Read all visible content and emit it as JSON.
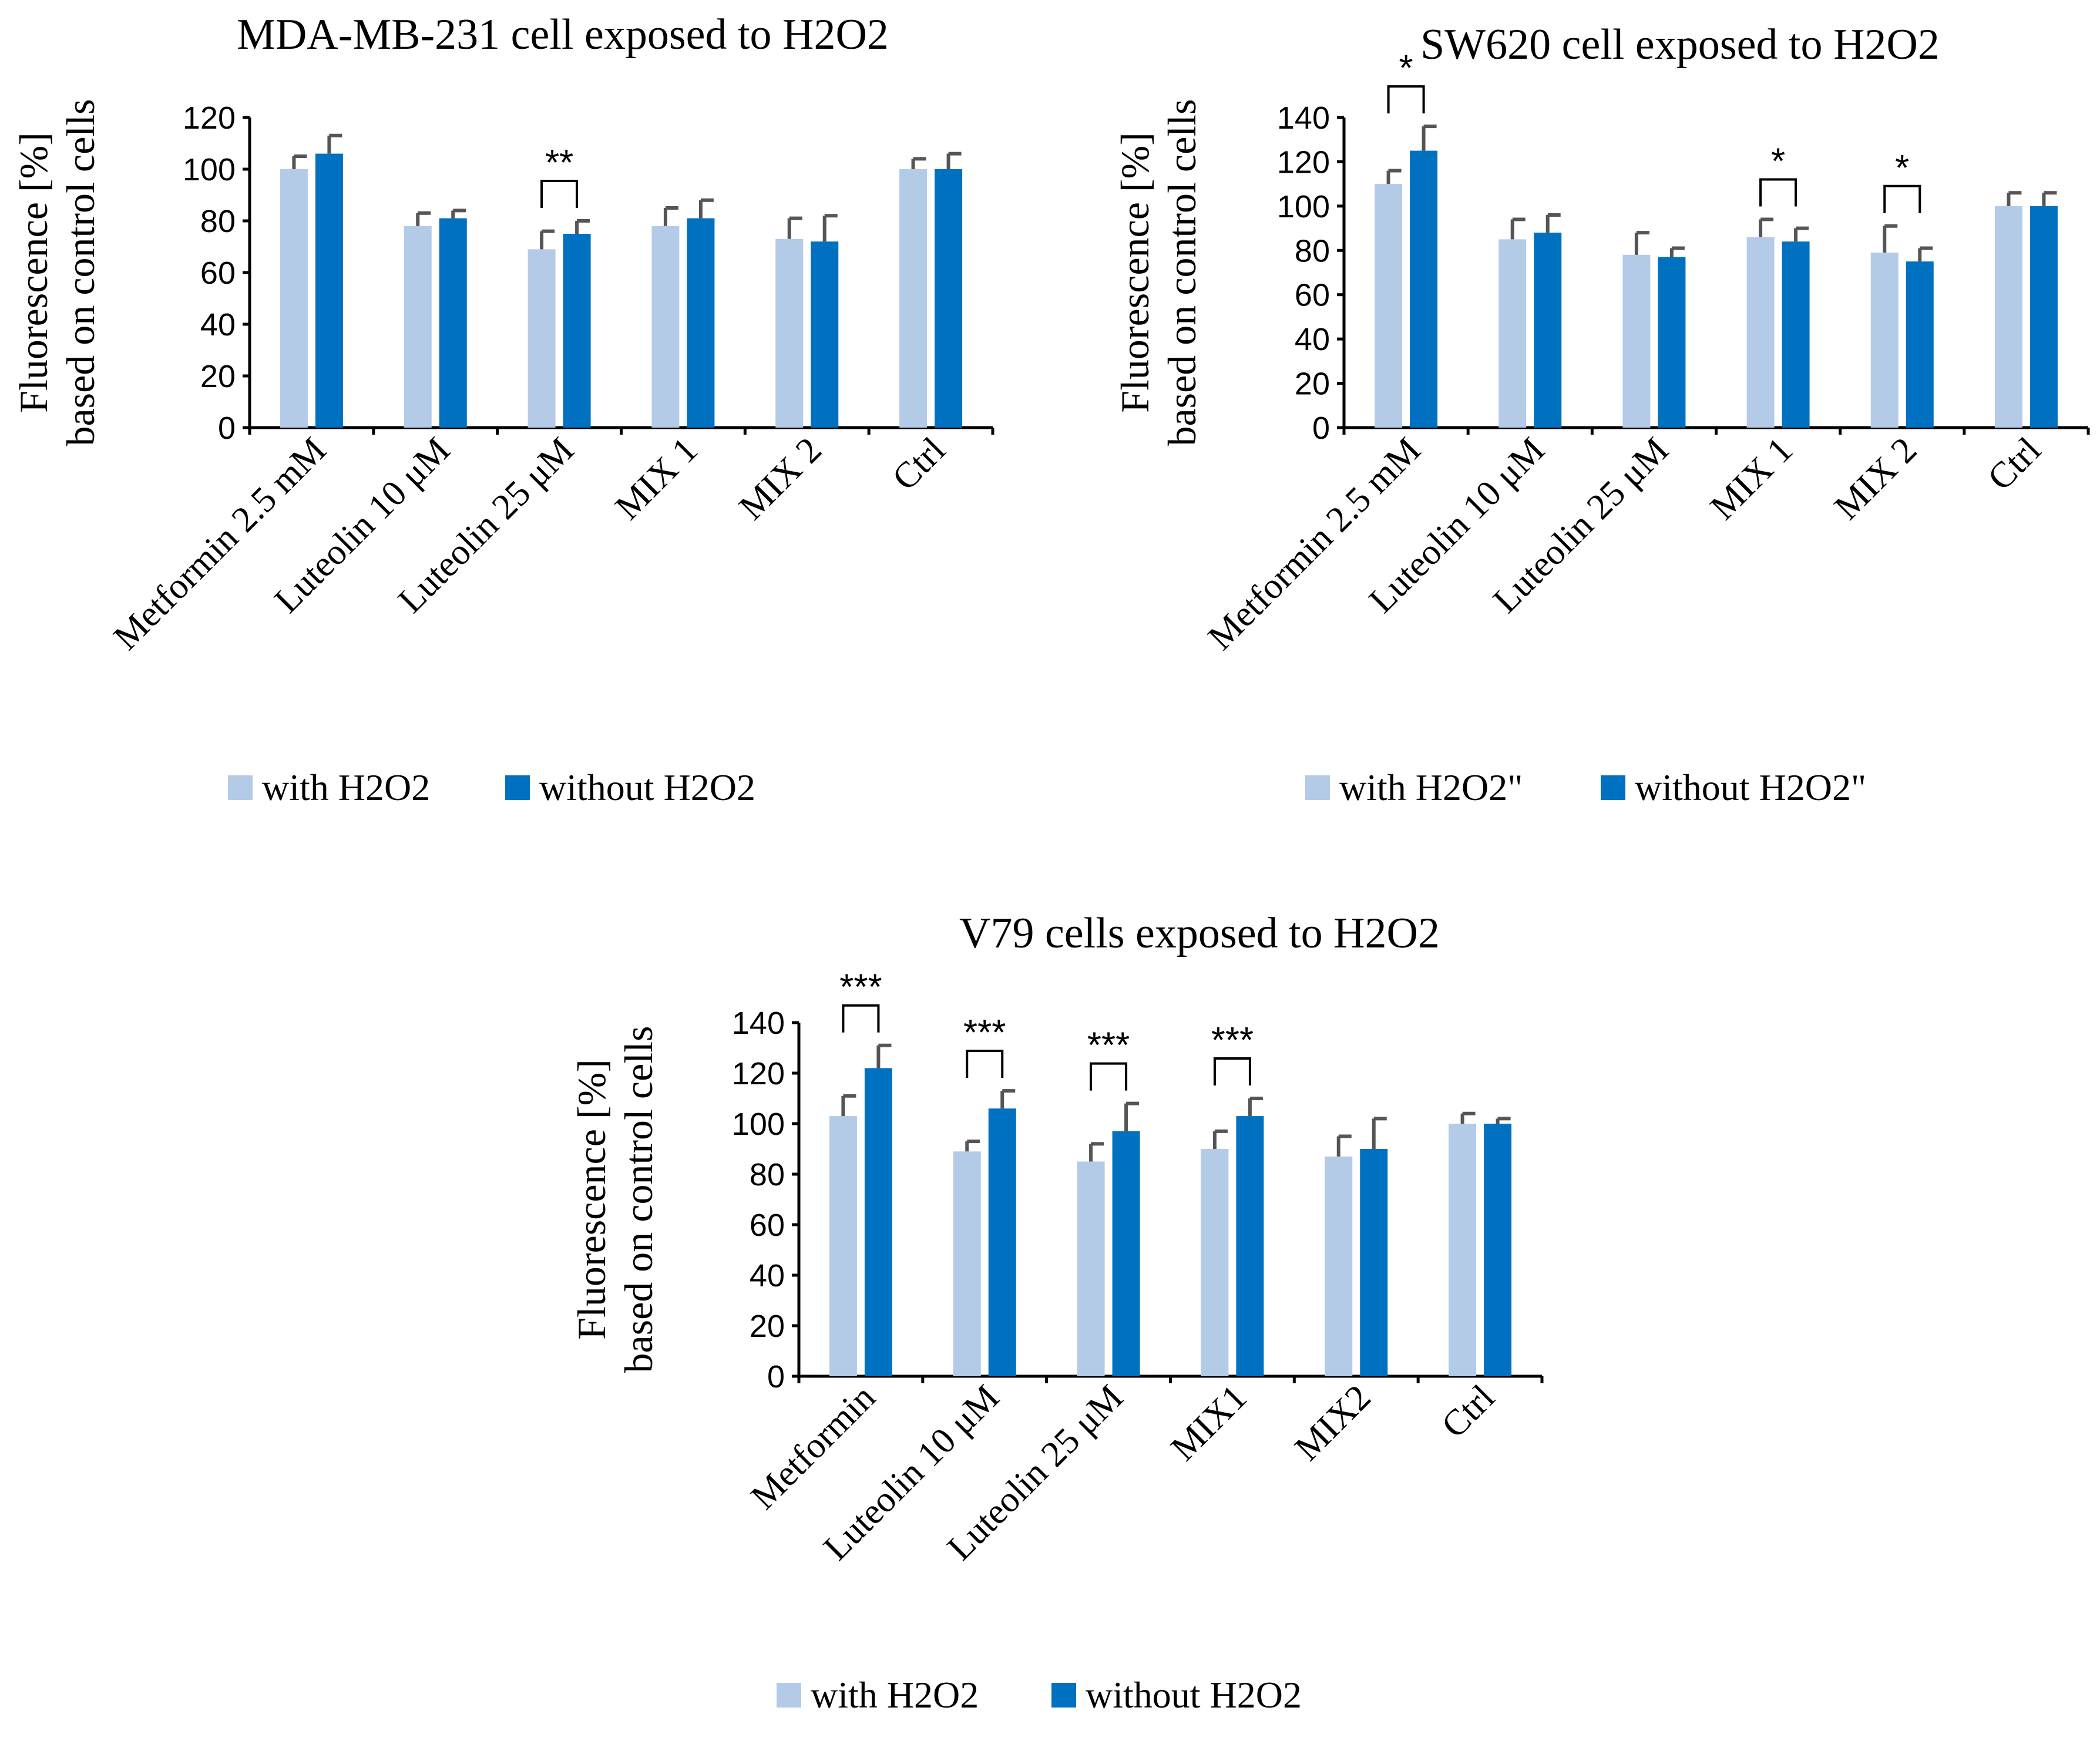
{
  "chart_data": [
    {
      "type": "bar",
      "title": "MDA-MB-231 cell exposed to H2O2",
      "ylabel_line1": "Fluorescence [%]",
      "ylabel_line2": "based on control cells",
      "xlabel": "",
      "ylim": [
        0,
        120
      ],
      "yticks": [
        0,
        20,
        40,
        60,
        80,
        100,
        120
      ],
      "categories": [
        "Metformin 2.5 mM",
        "Luteolin 10 μM",
        "Luteolin 25 μM",
        "MIX 1",
        "MIX 2",
        "Ctrl"
      ],
      "series": [
        {
          "name": "with H2O2",
          "color": "#b4cbe8",
          "values": [
            100,
            78,
            69,
            78,
            73,
            100
          ],
          "errors": [
            5,
            5,
            7,
            7,
            8,
            4
          ]
        },
        {
          "name": "without H2O2",
          "color": "#0070c0",
          "values": [
            106,
            81,
            75,
            81,
            72,
            100
          ],
          "errors": [
            7,
            3,
            5,
            7,
            10,
            6
          ]
        }
      ],
      "significance": [
        {
          "category": 2,
          "label": "**"
        }
      ],
      "legend": "bottom"
    },
    {
      "type": "bar",
      "title": "SW620 cell exposed to H2O2",
      "ylabel_line1": "Fluorescence [%]",
      "ylabel_line2": "based on control cells",
      "xlabel": "",
      "ylim": [
        0,
        140
      ],
      "yticks": [
        0,
        20,
        40,
        60,
        80,
        100,
        120,
        140
      ],
      "categories": [
        "Metformin 2.5 mM",
        "Luteolin 10 μM",
        "Luteolin 25 μM",
        "MIX 1",
        "MIX 2",
        "Ctrl"
      ],
      "series": [
        {
          "name": "with H2O2\"",
          "color": "#b4cbe8",
          "values": [
            110,
            85,
            78,
            86,
            79,
            100
          ],
          "errors": [
            6,
            9,
            10,
            8,
            12,
            6
          ]
        },
        {
          "name": "without H2O2\"",
          "color": "#0070c0",
          "values": [
            125,
            88,
            77,
            84,
            75,
            100
          ],
          "errors": [
            11,
            8,
            4,
            6,
            6,
            6
          ]
        }
      ],
      "significance": [
        {
          "category": 0,
          "label": "*"
        },
        {
          "category": 3,
          "label": "*"
        },
        {
          "category": 4,
          "label": "*"
        }
      ],
      "legend": "bottom"
    },
    {
      "type": "bar",
      "title": "V79 cells exposed to H2O2",
      "ylabel_line1": "Fluorescence [%]",
      "ylabel_line2": "based on control cells",
      "xlabel": "",
      "ylim": [
        0,
        140
      ],
      "yticks": [
        0,
        20,
        40,
        60,
        80,
        100,
        120,
        140
      ],
      "categories": [
        "Metformin",
        "Luteolin 10 μM",
        "Luteolin 25 μM",
        "MIX1",
        "MIX2",
        "Ctrl"
      ],
      "series": [
        {
          "name": "with H2O2",
          "color": "#b4cbe8",
          "values": [
            103,
            89,
            85,
            90,
            87,
            100
          ],
          "errors": [
            8,
            4,
            7,
            7,
            8,
            4
          ]
        },
        {
          "name": "without H2O2",
          "color": "#0070c0",
          "values": [
            122,
            106,
            97,
            103,
            90,
            100
          ],
          "errors": [
            9,
            7,
            11,
            7,
            12,
            2
          ]
        }
      ],
      "significance": [
        {
          "category": 0,
          "label": "***"
        },
        {
          "category": 1,
          "label": "***"
        },
        {
          "category": 2,
          "label": "***"
        },
        {
          "category": 3,
          "label": "***"
        }
      ],
      "legend": "bottom"
    }
  ]
}
